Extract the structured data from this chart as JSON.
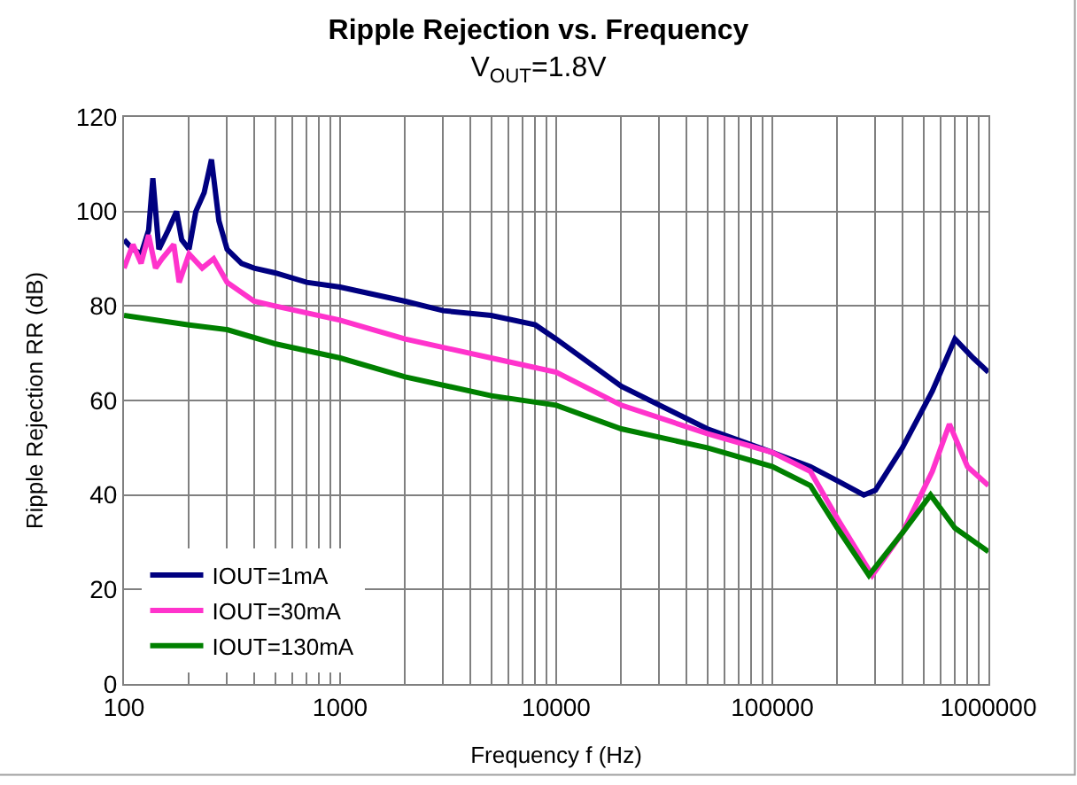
{
  "chart_data": {
    "type": "line",
    "title": "Ripple Rejection vs. Frequency",
    "subtitle": "V$_{OUT}$=1.8V",
    "xlabel": "Frequency f (Hz)",
    "ylabel": "Ripple Rejection RR (dB)",
    "log": "x",
    "xlim": [
      100,
      1000000
    ],
    "ylim": [
      0,
      120
    ],
    "xticks": [
      100,
      {
        "value": 200,
        "label": null
      },
      {
        "value": 300,
        "label": null
      },
      {
        "value": 400,
        "label": null
      },
      {
        "value": 500,
        "label": null
      },
      {
        "value": 600,
        "label": null
      },
      {
        "value": 700,
        "label": null
      },
      {
        "value": 800,
        "label": null
      },
      {
        "value": 900,
        "label": null
      },
      1000,
      {
        "value": 2000,
        "label": null
      },
      {
        "value": 3000,
        "label": null
      },
      {
        "value": 4000,
        "label": null
      },
      {
        "value": 5000,
        "label": null
      },
      {
        "value": 6000,
        "label": null
      },
      {
        "value": 7000,
        "label": null
      },
      {
        "value": 8000,
        "label": null
      },
      {
        "value": 9000,
        "label": null
      },
      10000,
      {
        "value": 20000,
        "label": null
      },
      {
        "value": 30000,
        "label": null
      },
      {
        "value": 40000,
        "label": null
      },
      {
        "value": 50000,
        "label": null
      },
      {
        "value": 60000,
        "label": null
      },
      {
        "value": 70000,
        "label": null
      },
      {
        "value": 80000,
        "label": null
      },
      {
        "value": 90000,
        "label": null
      },
      100000,
      {
        "value": 200000,
        "label": null
      },
      {
        "value": 300000,
        "label": null
      },
      {
        "value": 400000,
        "label": null
      },
      {
        "value": 500000,
        "label": null
      },
      {
        "value": 600000,
        "label": null
      },
      {
        "value": 700000,
        "label": null
      },
      {
        "value": 800000,
        "label": null
      },
      {
        "value": 900000,
        "label": null
      },
      1000000
    ],
    "yticks": [
      0,
      20,
      40,
      60,
      80,
      100,
      120
    ],
    "grid": true,
    "legend": "bottom left",
    "marker": "none",
    "line_style": "solid",
    "series": [
      {
        "name": "IOUT=1mA",
        "color": "#000080",
        "x": [
          100,
          110,
          120,
          130,
          136,
          145,
          160,
          175,
          185,
          200,
          215,
          235,
          254,
          275,
          300,
          350,
          400,
          500,
          700,
          1000,
          2000,
          3000,
          5000,
          8000,
          10000,
          20000,
          50000,
          100000,
          150000,
          200000,
          265000,
          300000,
          400000,
          550000,
          700000,
          850000,
          1000000
        ],
        "values": [
          94,
          92,
          91,
          96,
          107,
          92,
          96,
          100,
          94,
          92,
          100,
          104,
          111,
          98,
          92,
          89,
          88,
          87,
          85,
          84,
          81,
          79,
          78,
          76,
          73,
          63,
          54,
          49,
          46,
          43,
          40,
          41,
          50,
          62,
          73,
          69,
          66
        ]
      },
      {
        "name": "IOUT=30mA",
        "color": "#ff33cc",
        "x": [
          100,
          110,
          120,
          130,
          140,
          150,
          170,
          180,
          200,
          230,
          260,
          300,
          400,
          500,
          1000,
          2000,
          5000,
          10000,
          20000,
          50000,
          100000,
          150000,
          200000,
          290000,
          400000,
          550000,
          660000,
          800000,
          1000000
        ],
        "values": [
          88,
          93,
          89,
          95,
          88,
          90,
          93,
          85,
          91,
          88,
          90,
          85,
          81,
          80,
          77,
          73,
          69,
          66,
          59,
          53,
          49,
          45,
          35,
          23,
          32,
          45,
          55,
          46,
          42
        ]
      },
      {
        "name": "IOUT=130mA",
        "color": "#008000",
        "x": [
          100,
          200,
          300,
          500,
          1000,
          2000,
          5000,
          10000,
          20000,
          50000,
          100000,
          150000,
          200000,
          280000,
          400000,
          540000,
          700000,
          1000000
        ],
        "values": [
          78,
          76,
          75,
          72,
          69,
          65,
          61,
          59,
          54,
          50,
          46,
          42,
          33,
          23,
          32,
          40,
          33,
          28
        ]
      }
    ]
  }
}
